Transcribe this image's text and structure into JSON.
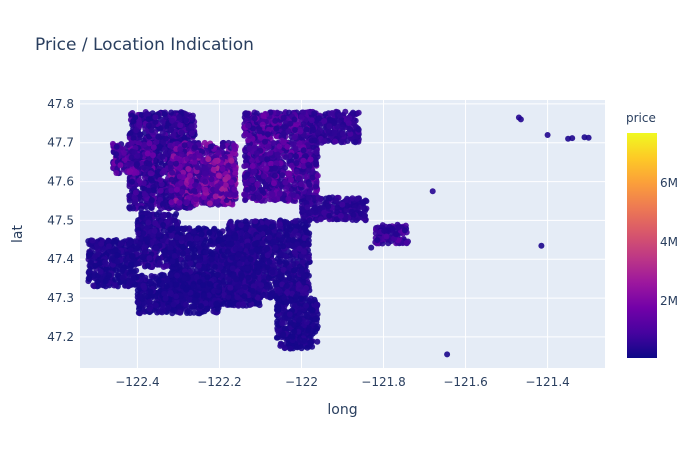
{
  "chart_data": {
    "type": "scatter",
    "title": "Price / Location Indication",
    "xlabel": "long",
    "ylabel": "lat",
    "xlim": [
      -122.54,
      -121.26
    ],
    "ylim": [
      47.12,
      47.81
    ],
    "x_ticks": [
      -122.4,
      -122.2,
      -122.0,
      -121.8,
      -121.6,
      -121.4
    ],
    "x_tick_labels": [
      "−122.4",
      "−122.2",
      "−122",
      "−121.8",
      "−121.6",
      "−121.4"
    ],
    "y_ticks": [
      47.2,
      47.3,
      47.4,
      47.5,
      47.6,
      47.7,
      47.8
    ],
    "y_tick_labels": [
      "47.2",
      "47.3",
      "47.4",
      "47.5",
      "47.6",
      "47.7",
      "47.8"
    ],
    "grid": true,
    "colorbar": {
      "title": "price",
      "min": 75000,
      "max": 7700000,
      "ticks": [
        2000000,
        4000000,
        6000000
      ],
      "tick_labels": [
        "2M",
        "4M",
        "6M"
      ],
      "colorscale": [
        "#0d0887",
        "#46039f",
        "#7201a8",
        "#9c179e",
        "#bd3786",
        "#d8576b",
        "#ed7953",
        "#fb9f3a",
        "#fdca26",
        "#f0f921"
      ]
    },
    "clusters": [
      {
        "long": [
          -122.42,
          -122.26
        ],
        "lat": [
          47.53,
          47.78
        ],
        "price": [
          300000,
          1200000
        ]
      },
      {
        "long": [
          -122.32,
          -122.16
        ],
        "lat": [
          47.54,
          47.7
        ],
        "price": [
          500000,
          2600000
        ]
      },
      {
        "long": [
          -122.24,
          -122.16
        ],
        "lat": [
          47.56,
          47.66
        ],
        "price": [
          800000,
          3200000
        ]
      },
      {
        "long": [
          -122.14,
          -121.96
        ],
        "lat": [
          47.55,
          47.78
        ],
        "price": [
          450000,
          1800000
        ]
      },
      {
        "long": [
          -122.46,
          -122.36
        ],
        "lat": [
          47.62,
          47.7
        ],
        "price": [
          400000,
          2000000
        ]
      },
      {
        "long": [
          -122.4,
          -122.3
        ],
        "lat": [
          47.38,
          47.52
        ],
        "price": [
          250000,
          800000
        ]
      },
      {
        "long": [
          -122.32,
          -122.1
        ],
        "lat": [
          47.28,
          47.48
        ],
        "price": [
          200000,
          600000
        ]
      },
      {
        "long": [
          -122.18,
          -121.98
        ],
        "lat": [
          47.3,
          47.5
        ],
        "price": [
          250000,
          700000
        ]
      },
      {
        "long": [
          -122.4,
          -122.2
        ],
        "lat": [
          47.26,
          47.36
        ],
        "price": [
          200000,
          500000
        ]
      },
      {
        "long": [
          -122.52,
          -122.4
        ],
        "lat": [
          47.33,
          47.45
        ],
        "price": [
          200000,
          600000
        ]
      },
      {
        "long": [
          -122.06,
          -121.96
        ],
        "lat": [
          47.17,
          47.3
        ],
        "price": [
          200000,
          550000
        ]
      },
      {
        "long": [
          -122.0,
          -121.84
        ],
        "lat": [
          47.5,
          47.56
        ],
        "price": [
          350000,
          900000
        ]
      },
      {
        "long": [
          -121.82,
          -121.74
        ],
        "lat": [
          47.44,
          47.49
        ],
        "price": [
          400000,
          1400000
        ]
      },
      {
        "long": [
          -121.98,
          -121.86
        ],
        "lat": [
          47.7,
          47.78
        ],
        "price": [
          400000,
          1000000
        ]
      }
    ],
    "outliers": [
      {
        "long": -121.47,
        "lat": 47.765,
        "price": 400000
      },
      {
        "long": -121.465,
        "lat": 47.76,
        "price": 380000
      },
      {
        "long": -121.4,
        "lat": 47.72,
        "price": 350000
      },
      {
        "long": -121.35,
        "lat": 47.71,
        "price": 320000
      },
      {
        "long": -121.34,
        "lat": 47.712,
        "price": 330000
      },
      {
        "long": -121.31,
        "lat": 47.714,
        "price": 300000
      },
      {
        "long": -121.3,
        "lat": 47.713,
        "price": 310000
      },
      {
        "long": -121.415,
        "lat": 47.435,
        "price": 300000
      },
      {
        "long": -121.645,
        "lat": 47.155,
        "price": 250000
      },
      {
        "long": -121.68,
        "lat": 47.575,
        "price": 450000
      },
      {
        "long": -121.83,
        "lat": 47.43,
        "price": 300000
      },
      {
        "long": -121.9,
        "lat": 47.74,
        "price": 500000
      }
    ]
  }
}
